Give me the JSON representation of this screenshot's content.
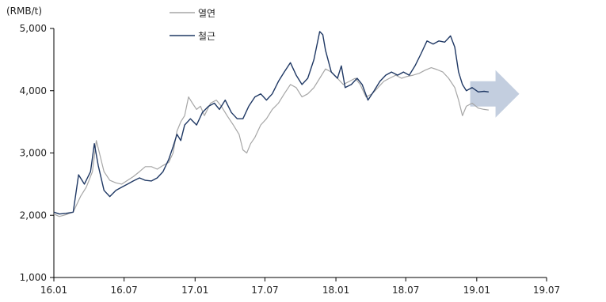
{
  "chart_data": {
    "type": "line",
    "unit_label": "(RMB/t)",
    "x_ticks": [
      "16.01",
      "16.07",
      "17.01",
      "17.07",
      "18.01",
      "18.07",
      "19.01",
      "19.07"
    ],
    "y_ticks": [
      "1,000",
      "2,000",
      "3,000",
      "4,000",
      "5,000"
    ],
    "ylim": [
      1000,
      5000
    ],
    "xlim": [
      "16.01",
      "19.07"
    ],
    "grid": false,
    "legend_position": "top-center",
    "colors": {
      "hot_rolled": "#a6a6a6",
      "rebar": "#1f3864",
      "arrow": "#b8c6d9"
    },
    "annotation": "arrow pointing right indicating continued level",
    "series": [
      {
        "name": "열연",
        "key": "hot_rolled",
        "points": [
          [
            "2016-01-01",
            2020
          ],
          [
            "2016-01-15",
            1980
          ],
          [
            "2016-02-01",
            2010
          ],
          [
            "2016-02-20",
            2050
          ],
          [
            "2016-03-10",
            2300
          ],
          [
            "2016-03-25",
            2450
          ],
          [
            "2016-04-10",
            2700
          ],
          [
            "2016-04-20",
            3200
          ],
          [
            "2016-04-28",
            3000
          ],
          [
            "2016-05-10",
            2700
          ],
          [
            "2016-05-25",
            2560
          ],
          [
            "2016-06-10",
            2520
          ],
          [
            "2016-06-25",
            2500
          ],
          [
            "2016-07-10",
            2560
          ],
          [
            "2016-07-25",
            2620
          ],
          [
            "2016-08-10",
            2700
          ],
          [
            "2016-08-25",
            2780
          ],
          [
            "2016-09-10",
            2780
          ],
          [
            "2016-09-25",
            2740
          ],
          [
            "2016-10-10",
            2800
          ],
          [
            "2016-10-25",
            2850
          ],
          [
            "2016-11-05",
            3000
          ],
          [
            "2016-11-15",
            3350
          ],
          [
            "2016-11-25",
            3500
          ],
          [
            "2016-12-05",
            3600
          ],
          [
            "2016-12-15",
            3900
          ],
          [
            "2016-12-25",
            3800
          ],
          [
            "2017-01-05",
            3700
          ],
          [
            "2017-01-15",
            3750
          ],
          [
            "2017-01-25",
            3600
          ],
          [
            "2017-02-10",
            3800
          ],
          [
            "2017-02-25",
            3850
          ],
          [
            "2017-03-10",
            3750
          ],
          [
            "2017-03-25",
            3600
          ],
          [
            "2017-04-10",
            3450
          ],
          [
            "2017-04-25",
            3300
          ],
          [
            "2017-05-05",
            3050
          ],
          [
            "2017-05-15",
            3000
          ],
          [
            "2017-05-25",
            3150
          ],
          [
            "2017-06-05",
            3250
          ],
          [
            "2017-06-20",
            3450
          ],
          [
            "2017-07-05",
            3550
          ],
          [
            "2017-07-20",
            3700
          ],
          [
            "2017-08-05",
            3800
          ],
          [
            "2017-08-20",
            3950
          ],
          [
            "2017-09-05",
            4100
          ],
          [
            "2017-09-20",
            4050
          ],
          [
            "2017-10-05",
            3900
          ],
          [
            "2017-10-20",
            3950
          ],
          [
            "2017-11-05",
            4050
          ],
          [
            "2017-11-20",
            4200
          ],
          [
            "2017-12-05",
            4350
          ],
          [
            "2017-12-20",
            4300
          ],
          [
            "2018-01-05",
            4200
          ],
          [
            "2018-01-20",
            4100
          ],
          [
            "2018-02-05",
            4150
          ],
          [
            "2018-02-20",
            4200
          ],
          [
            "2018-03-05",
            4100
          ],
          [
            "2018-03-20",
            3900
          ],
          [
            "2018-04-05",
            3950
          ],
          [
            "2018-04-20",
            4050
          ],
          [
            "2018-05-05",
            4150
          ],
          [
            "2018-05-20",
            4200
          ],
          [
            "2018-06-05",
            4250
          ],
          [
            "2018-06-20",
            4200
          ],
          [
            "2018-07-05",
            4230
          ],
          [
            "2018-07-20",
            4250
          ],
          [
            "2018-08-05",
            4280
          ],
          [
            "2018-08-20",
            4330
          ],
          [
            "2018-09-05",
            4370
          ],
          [
            "2018-09-20",
            4340
          ],
          [
            "2018-10-05",
            4300
          ],
          [
            "2018-10-20",
            4200
          ],
          [
            "2018-11-05",
            4050
          ],
          [
            "2018-11-15",
            3850
          ],
          [
            "2018-11-25",
            3600
          ],
          [
            "2018-12-05",
            3750
          ],
          [
            "2018-12-20",
            3800
          ],
          [
            "2019-01-05",
            3720
          ],
          [
            "2019-01-20",
            3700
          ],
          [
            "2019-02-01",
            3690
          ]
        ]
      },
      {
        "name": "철근",
        "key": "rebar",
        "points": [
          [
            "2016-01-01",
            2050
          ],
          [
            "2016-01-15",
            2020
          ],
          [
            "2016-02-01",
            2030
          ],
          [
            "2016-02-20",
            2050
          ],
          [
            "2016-03-05",
            2650
          ],
          [
            "2016-03-20",
            2500
          ],
          [
            "2016-04-05",
            2700
          ],
          [
            "2016-04-15",
            3150
          ],
          [
            "2016-04-25",
            2800
          ],
          [
            "2016-05-10",
            2400
          ],
          [
            "2016-05-25",
            2300
          ],
          [
            "2016-06-10",
            2400
          ],
          [
            "2016-06-25",
            2450
          ],
          [
            "2016-07-10",
            2500
          ],
          [
            "2016-07-25",
            2550
          ],
          [
            "2016-08-10",
            2600
          ],
          [
            "2016-08-25",
            2560
          ],
          [
            "2016-09-10",
            2550
          ],
          [
            "2016-09-25",
            2600
          ],
          [
            "2016-10-10",
            2700
          ],
          [
            "2016-10-25",
            2900
          ],
          [
            "2016-11-05",
            3100
          ],
          [
            "2016-11-15",
            3300
          ],
          [
            "2016-11-25",
            3200
          ],
          [
            "2016-12-05",
            3450
          ],
          [
            "2016-12-20",
            3550
          ],
          [
            "2017-01-05",
            3450
          ],
          [
            "2017-01-20",
            3650
          ],
          [
            "2017-02-05",
            3750
          ],
          [
            "2017-02-20",
            3800
          ],
          [
            "2017-03-05",
            3700
          ],
          [
            "2017-03-20",
            3850
          ],
          [
            "2017-04-05",
            3650
          ],
          [
            "2017-04-20",
            3550
          ],
          [
            "2017-05-05",
            3550
          ],
          [
            "2017-05-20",
            3750
          ],
          [
            "2017-06-05",
            3900
          ],
          [
            "2017-06-20",
            3950
          ],
          [
            "2017-07-05",
            3850
          ],
          [
            "2017-07-20",
            3950
          ],
          [
            "2017-08-05",
            4150
          ],
          [
            "2017-08-20",
            4300
          ],
          [
            "2017-09-05",
            4450
          ],
          [
            "2017-09-20",
            4250
          ],
          [
            "2017-10-05",
            4100
          ],
          [
            "2017-10-20",
            4200
          ],
          [
            "2017-11-05",
            4500
          ],
          [
            "2017-11-20",
            4950
          ],
          [
            "2017-11-28",
            4900
          ],
          [
            "2017-12-05",
            4650
          ],
          [
            "2017-12-20",
            4300
          ],
          [
            "2018-01-05",
            4200
          ],
          [
            "2018-01-15",
            4400
          ],
          [
            "2018-01-25",
            4050
          ],
          [
            "2018-02-10",
            4100
          ],
          [
            "2018-02-25",
            4200
          ],
          [
            "2018-03-10",
            4100
          ],
          [
            "2018-03-25",
            3850
          ],
          [
            "2018-04-10",
            4000
          ],
          [
            "2018-04-25",
            4150
          ],
          [
            "2018-05-10",
            4250
          ],
          [
            "2018-05-25",
            4300
          ],
          [
            "2018-06-10",
            4250
          ],
          [
            "2018-06-25",
            4300
          ],
          [
            "2018-07-10",
            4250
          ],
          [
            "2018-07-25",
            4400
          ],
          [
            "2018-08-10",
            4600
          ],
          [
            "2018-08-25",
            4800
          ],
          [
            "2018-09-10",
            4750
          ],
          [
            "2018-09-25",
            4800
          ],
          [
            "2018-10-10",
            4780
          ],
          [
            "2018-10-25",
            4880
          ],
          [
            "2018-11-05",
            4700
          ],
          [
            "2018-11-15",
            4300
          ],
          [
            "2018-11-25",
            4100
          ],
          [
            "2018-12-05",
            4000
          ],
          [
            "2018-12-20",
            4050
          ],
          [
            "2019-01-05",
            3980
          ],
          [
            "2019-01-20",
            3990
          ],
          [
            "2019-02-01",
            3980
          ]
        ]
      }
    ]
  }
}
